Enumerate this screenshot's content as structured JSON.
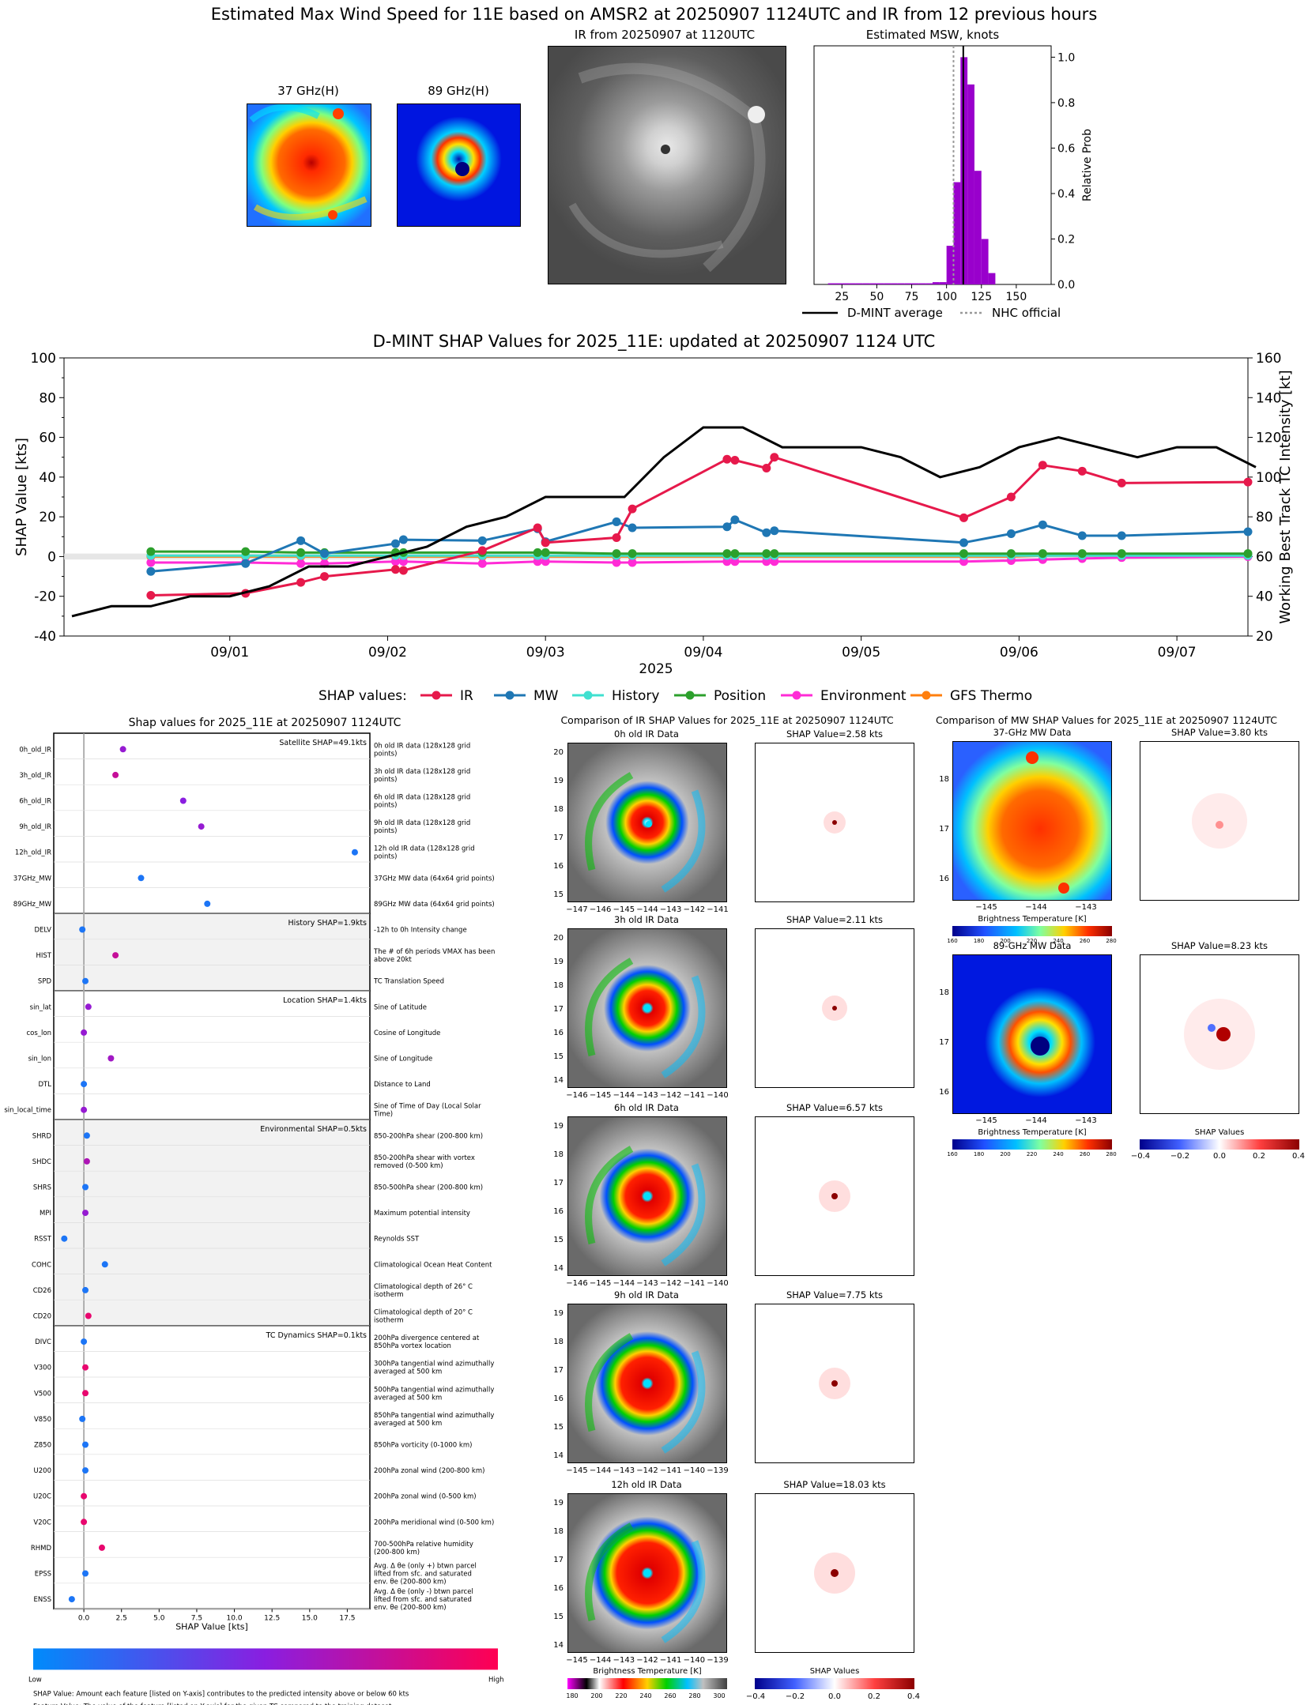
{
  "header": {
    "title": "Estimated Max Wind Speed for 11E based on AMSR2 at 20250907 1124UTC and IR from 12 previous hours",
    "thumb_37": "37 GHz(H)",
    "thumb_89": "89 GHz(H)",
    "ir_title": "IR from 20250907 at 1120UTC",
    "msw_title": "Estimated MSW, knots",
    "legend_dmint": "D-MINT average",
    "legend_nhc": "NHC official"
  },
  "timeseries_title": "D-MINT SHAP Values for 2025_11E: updated at 20250907 1124 UTC",
  "timeseries_legend": {
    "prefix": "SHAP values:",
    "ir": "IR",
    "mw": "MW",
    "history": "History",
    "position": "Position",
    "environment": "Environment",
    "gfs": "GFS Thermo",
    "tc": "TC Intensity"
  },
  "shap_panel": {
    "title": "Shap values for 2025_11E at 20250907 1124UTC",
    "group_labels": [
      "Satellite SHAP=49.1kts",
      "History SHAP=1.9kts",
      "Location SHAP=1.4kts",
      "Environmental SHAP=0.5kts",
      "TC Dynamics SHAP=0.1kts"
    ],
    "xlabel": "SHAP Value [kts]",
    "cbar_low": "Low",
    "cbar_high": "High",
    "footnote1": "SHAP Value: Amount each feature [listed on Y-axis] contributes to the predicted intensity above or below 60 kts",
    "footnote2": "Feature Value: The value of the feature [listed on Y-axis] for the given TC compared to the training dataset"
  },
  "ir_compare": {
    "title": "Comparison of IR SHAP Values for 2025_11E at 20250907 1124UTC",
    "panels": [
      {
        "label": "0h old IR Data",
        "shap": "SHAP Value=2.58 kts",
        "xt": [
          "−147",
          "−146",
          "−145",
          "−144",
          "−143",
          "−142",
          "−141"
        ],
        "yt": [
          "20",
          "19",
          "18",
          "17",
          "16",
          "15"
        ]
      },
      {
        "label": "3h old IR Data",
        "shap": "SHAP Value=2.11 kts",
        "xt": [
          "−146",
          "−145",
          "−144",
          "−143",
          "−142",
          "−141",
          "−140"
        ],
        "yt": [
          "20",
          "19",
          "18",
          "17",
          "16",
          "15",
          "14"
        ]
      },
      {
        "label": "6h old IR Data",
        "shap": "SHAP Value=6.57 kts",
        "xt": [
          "−146",
          "−145",
          "−144",
          "−143",
          "−142",
          "−141",
          "−140"
        ],
        "yt": [
          "19",
          "18",
          "17",
          "16",
          "15",
          "14"
        ]
      },
      {
        "label": "9h old IR Data",
        "shap": "SHAP Value=7.75 kts",
        "xt": [
          "−145",
          "−144",
          "−143",
          "−142",
          "−141",
          "−140",
          "−139"
        ],
        "yt": [
          "19",
          "18",
          "17",
          "16",
          "15",
          "14"
        ]
      },
      {
        "label": "12h old IR Data",
        "shap": "SHAP Value=18.03 kts",
        "xt": [
          "−145",
          "−144",
          "−143",
          "−142",
          "−141",
          "−140",
          "−139"
        ],
        "yt": [
          "19",
          "18",
          "17",
          "16",
          "15",
          "14"
        ]
      }
    ],
    "cbar_title": "Brightness Temperature [K]",
    "cbar_ticks": [
      "180",
      "200",
      "220",
      "240",
      "260",
      "280",
      "300"
    ],
    "shap_cbar_title": "SHAP Values",
    "shap_cbar_ticks": [
      "−0.4",
      "−0.2",
      "0.0",
      "0.2",
      "0.4"
    ]
  },
  "mw_compare": {
    "title": "Comparison of MW SHAP Values for 2025_11E at 20250907 1124UTC",
    "panels": [
      {
        "label": "37-GHz MW Data",
        "shap": "SHAP Value=3.80 kts"
      },
      {
        "label": "89-GHz MW Data",
        "shap": "SHAP Value=8.23 kts"
      }
    ],
    "xt": [
      "−145",
      "−144",
      "−143"
    ],
    "yt": [
      "18",
      "17",
      "16"
    ],
    "cbar_title": "Brightness Temperature [K]",
    "cbar_ticks": [
      "160",
      "180",
      "200",
      "220",
      "240",
      "260",
      "280"
    ],
    "shap_cbar_title": "SHAP Values",
    "shap_cbar_ticks": [
      "−0.4",
      "−0.2",
      "0.0",
      "0.2",
      "0.4"
    ]
  },
  "colors": {
    "ir": "#e6194b",
    "mw": "#1f77b4",
    "history": "#40e0d0",
    "position": "#2ca02c",
    "environment": "#ff2bd6",
    "gfs": "#ff7f0e",
    "tc": "#000000",
    "hist_bar": "#9900cc"
  },
  "chart_data": [
    {
      "type": "bar",
      "title": "Estimated MSW, knots",
      "ylabel": "Relative Prob",
      "xticks": [
        25,
        50,
        75,
        100,
        125,
        150
      ],
      "yticks": [
        0.0,
        0.2,
        0.4,
        0.6,
        0.8,
        1.0
      ],
      "xlim": [
        5,
        175
      ],
      "ylim": [
        0,
        1.05
      ],
      "bin_width": 5,
      "bins": [
        15,
        20,
        25,
        30,
        35,
        40,
        45,
        50,
        55,
        60,
        65,
        70,
        75,
        80,
        85,
        90,
        95,
        100,
        105,
        110,
        115,
        120,
        125,
        130
      ],
      "values": [
        0.005,
        0.005,
        0.005,
        0.005,
        0.005,
        0.005,
        0.005,
        0.005,
        0.005,
        0.005,
        0.005,
        0.005,
        0.005,
        0.005,
        0.005,
        0.01,
        0.01,
        0.17,
        0.45,
        1.0,
        0.88,
        0.5,
        0.2,
        0.05
      ],
      "dmint_average": 112,
      "nhc_official": 105,
      "legend": [
        "D-MINT average",
        "NHC official"
      ]
    },
    {
      "type": "line",
      "title": "D-MINT SHAP Values for 2025_11E: updated at 20250907 1124 UTC",
      "xlabel": "2025",
      "ylabel": "SHAP Value [kts]",
      "y2label": "Working Best Track TC Intensity [kt]",
      "xticks": [
        "09/01",
        "09/02",
        "09/03",
        "09/04",
        "09/05",
        "09/06",
        "09/07"
      ],
      "ylim": [
        -40,
        100
      ],
      "y2lim": [
        20,
        160
      ],
      "x_units": "days since 2025-08-31 00UTC",
      "series": [
        {
          "name": "IR",
          "x": [
            0.5,
            1.1,
            1.45,
            1.6,
            2.05,
            2.1,
            2.6,
            2.95,
            3.0,
            3.45,
            3.55,
            4.15,
            4.2,
            4.4,
            4.45,
            5.65,
            5.95,
            6.15,
            6.4,
            6.65,
            7.45
          ],
          "values": [
            -19.5,
            -18.5,
            -13,
            -10,
            -6.5,
            -7,
            3,
            14.5,
            7,
            9.5,
            24,
            49,
            48.5,
            44.5,
            50,
            19.5,
            30,
            46,
            43,
            37,
            37.5
          ]
        },
        {
          "name": "MW",
          "x": [
            0.5,
            1.1,
            1.45,
            1.6,
            2.05,
            2.1,
            2.6,
            2.95,
            3.0,
            3.45,
            3.55,
            4.15,
            4.2,
            4.4,
            4.45,
            5.65,
            5.95,
            6.15,
            6.4,
            6.65,
            7.45
          ],
          "values": [
            -7.5,
            -3.5,
            8,
            1.5,
            6.5,
            8.5,
            8,
            14,
            7.5,
            17.5,
            14.5,
            15,
            18.5,
            12,
            13,
            7,
            11.5,
            16,
            10.5,
            10.5,
            12.5
          ]
        },
        {
          "name": "History",
          "x": [
            0.5,
            1.1,
            1.45,
            1.6,
            2.05,
            2.1,
            2.6,
            2.95,
            3.0,
            3.45,
            3.55,
            4.15,
            4.2,
            4.4,
            4.45,
            5.65,
            5.95,
            6.15,
            6.4,
            6.65,
            7.45
          ],
          "values": [
            0.5,
            0.5,
            0.5,
            0.5,
            0.5,
            0.5,
            0.5,
            0.5,
            0.5,
            0.5,
            0.5,
            0.5,
            0.5,
            0.5,
            0.5,
            0.5,
            0.5,
            0.5,
            0.5,
            0.5,
            0.5
          ]
        },
        {
          "name": "Position",
          "x": [
            0.5,
            1.1,
            1.45,
            1.6,
            2.05,
            2.1,
            2.6,
            2.95,
            3.0,
            3.45,
            3.55,
            4.15,
            4.2,
            4.4,
            4.45,
            5.65,
            5.95,
            6.15,
            6.4,
            6.65,
            7.45
          ],
          "values": [
            2.5,
            2.5,
            2,
            2,
            2,
            2,
            2,
            2,
            2,
            1.5,
            1.5,
            1.5,
            1.5,
            1.5,
            1.5,
            1.5,
            1.5,
            1.5,
            1.5,
            1.5,
            1.5
          ]
        },
        {
          "name": "Environment",
          "x": [
            0.5,
            1.1,
            1.45,
            1.6,
            2.05,
            2.1,
            2.6,
            2.95,
            3.0,
            3.45,
            3.55,
            4.15,
            4.2,
            4.4,
            4.45,
            5.65,
            5.95,
            6.15,
            6.4,
            6.65,
            7.45
          ],
          "values": [
            -3,
            -3,
            -3.5,
            -3.5,
            -2.5,
            -2.5,
            -3.5,
            -2.5,
            -2.5,
            -3,
            -3,
            -2.5,
            -2.5,
            -2.5,
            -2.5,
            -2.5,
            -2,
            -1.5,
            -1,
            -0.5,
            0
          ]
        },
        {
          "name": "GFS Thermo",
          "x": [
            0.5,
            1.1,
            1.45,
            1.6,
            2.05,
            2.1,
            2.6,
            2.95,
            3.0,
            3.45,
            3.55,
            4.15,
            4.2,
            4.4,
            4.45,
            5.65,
            5.95,
            6.15,
            6.4,
            6.65,
            7.45
          ],
          "values": [
            0,
            0,
            0,
            0,
            0,
            0,
            0,
            0,
            0,
            0,
            0,
            0,
            0,
            0,
            0,
            0,
            0,
            0.5,
            0.5,
            0.5,
            0.5
          ]
        },
        {
          "name": "TC Intensity",
          "axis": "right",
          "x": [
            0,
            0.25,
            0.5,
            0.75,
            1.0,
            1.25,
            1.5,
            1.75,
            2.0,
            2.25,
            2.5,
            2.75,
            3.0,
            3.25,
            3.5,
            3.75,
            4.0,
            4.25,
            4.5,
            4.75,
            5.0,
            5.25,
            5.5,
            5.75,
            6.0,
            6.25,
            6.5,
            6.75,
            7.0,
            7.25,
            7.5
          ],
          "values": [
            30,
            35,
            35,
            40,
            40,
            45,
            55,
            55,
            60,
            65,
            75,
            80,
            90,
            90,
            90,
            110,
            125,
            125,
            115,
            115,
            115,
            110,
            100,
            105,
            115,
            120,
            115,
            110,
            115,
            115,
            105
          ]
        }
      ]
    },
    {
      "type": "scatter",
      "title": "Shap values for 2025_11E at 20250907 1124UTC",
      "xlabel": "SHAP Value [kts]",
      "xticks": [
        0.0,
        2.5,
        5.0,
        7.5,
        10.0,
        12.5,
        15.0,
        17.5
      ],
      "xlim": [
        -2,
        19
      ],
      "features": [
        {
          "name": "0h_old_IR",
          "desc": "0h old IR data (128x128 grid points)",
          "shap": 2.6,
          "feature_value": 0.55
        },
        {
          "name": "3h_old_IR",
          "desc": "3h old IR data (128x128 grid points)",
          "shap": 2.1,
          "feature_value": 0.75
        },
        {
          "name": "6h_old_IR",
          "desc": "6h old IR data (128x128 grid points)",
          "shap": 6.6,
          "feature_value": 0.5
        },
        {
          "name": "9h_old_IR",
          "desc": "9h old IR data (128x128 grid points)",
          "shap": 7.8,
          "feature_value": 0.55
        },
        {
          "name": "12h_old_IR",
          "desc": "12h old IR data (128x128 grid points)",
          "shap": 18.0,
          "feature_value": 0.1
        },
        {
          "name": "37GHz_MW",
          "desc": "37GHz MW data (64x64 grid points)",
          "shap": 3.8,
          "feature_value": 0.1
        },
        {
          "name": "89GHz_MW",
          "desc": "89GHz MW data (64x64 grid points)",
          "shap": 8.2,
          "feature_value": 0.1
        },
        {
          "name": "DELV",
          "desc": "-12h to 0h Intensity change",
          "shap": -0.1,
          "feature_value": 0.1
        },
        {
          "name": "HIST",
          "desc": "The # of 6h periods VMAX has been above 20kt",
          "shap": 2.1,
          "feature_value": 0.75
        },
        {
          "name": "SPD",
          "desc": "TC Translation Speed",
          "shap": 0.1,
          "feature_value": 0.1
        },
        {
          "name": "sin_lat",
          "desc": "Sine of Latitude",
          "shap": 0.3,
          "feature_value": 0.55
        },
        {
          "name": "cos_lon",
          "desc": "Cosine of Longitude",
          "shap": 0.0,
          "feature_value": 0.55
        },
        {
          "name": "sin_lon",
          "desc": "Sine of Longitude",
          "shap": 1.8,
          "feature_value": 0.6
        },
        {
          "name": "DTL",
          "desc": "Distance to Land",
          "shap": 0.0,
          "feature_value": 0.1
        },
        {
          "name": "sin_local_time",
          "desc": "Sine of Time of Day (Local Solar Time)",
          "shap": 0.0,
          "feature_value": 0.55
        },
        {
          "name": "SHRD",
          "desc": "850-200hPa shear (200-800 km)",
          "shap": 0.2,
          "feature_value": 0.1
        },
        {
          "name": "SHDC",
          "desc": "850-200hPa shear with vortex removed (0-500 km)",
          "shap": 0.2,
          "feature_value": 0.65
        },
        {
          "name": "SHRS",
          "desc": "850-500hPa shear (200-800 km)",
          "shap": 0.1,
          "feature_value": 0.1
        },
        {
          "name": "MPI",
          "desc": "Maximum potential intensity",
          "shap": 0.1,
          "feature_value": 0.55
        },
        {
          "name": "RSST",
          "desc": "Reynolds SST",
          "shap": -1.3,
          "feature_value": 0.1
        },
        {
          "name": "COHC",
          "desc": "Climatological Ocean Heat Content",
          "shap": 1.4,
          "feature_value": 0.1
        },
        {
          "name": "CD26",
          "desc": "Climatological depth of 26° C isotherm",
          "shap": 0.1,
          "feature_value": 0.1
        },
        {
          "name": "CD20",
          "desc": "Climatological depth of 20° C isotherm",
          "shap": 0.3,
          "feature_value": 0.9
        },
        {
          "name": "DIVC",
          "desc": "200hPa divergence centered at 850hPa vortex location",
          "shap": 0.0,
          "feature_value": 0.1
        },
        {
          "name": "V300",
          "desc": "300hPa tangential wind azimuthally averaged at 500 km",
          "shap": 0.1,
          "feature_value": 0.9
        },
        {
          "name": "V500",
          "desc": "500hPa tangential wind azimuthally averaged at 500 km",
          "shap": 0.1,
          "feature_value": 0.9
        },
        {
          "name": "V850",
          "desc": "850hPa tangential wind azimuthally averaged at 500 km",
          "shap": -0.1,
          "feature_value": 0.1
        },
        {
          "name": "Z850",
          "desc": "850hPa vorticity (0-1000 km)",
          "shap": 0.1,
          "feature_value": 0.1
        },
        {
          "name": "U200",
          "desc": "200hPa zonal wind (200-800 km)",
          "shap": 0.1,
          "feature_value": 0.1
        },
        {
          "name": "U20C",
          "desc": "200hPa zonal wind (0-500 km)",
          "shap": 0.0,
          "feature_value": 0.9
        },
        {
          "name": "V20C",
          "desc": "200hPa meridional wind (0-500 km)",
          "shap": 0.0,
          "feature_value": 0.9
        },
        {
          "name": "RHMD",
          "desc": "700-500hPa relative humidity (200-800 km)",
          "shap": 1.2,
          "feature_value": 0.9
        },
        {
          "name": "EPSS",
          "desc": "Avg. Δ θe (only +) btwn parcel lifted from sfc. and saturated env. θe (200-800 km)",
          "shap": 0.1,
          "feature_value": 0.1
        },
        {
          "name": "ENSS",
          "desc": "Avg. Δ θe (only -) btwn parcel lifted from sfc. and saturated env. θe (200-800 km)",
          "shap": -0.8,
          "feature_value": 0.1
        }
      ]
    }
  ]
}
